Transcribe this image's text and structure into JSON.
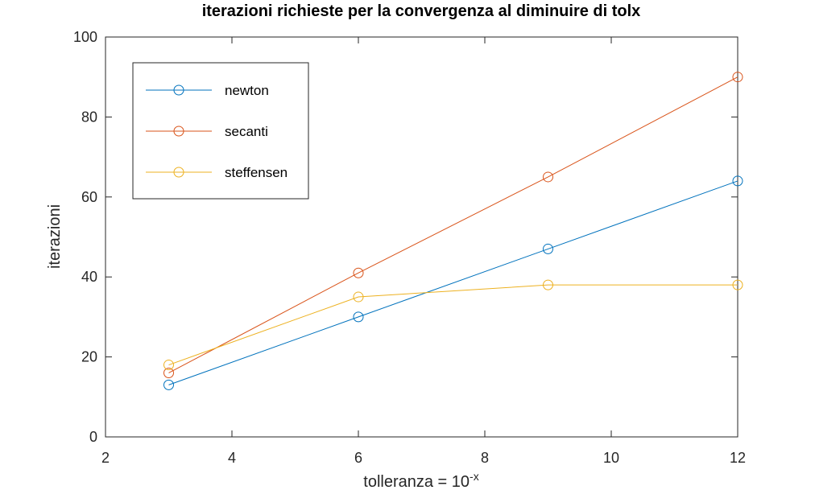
{
  "chart_data": {
    "type": "line",
    "title": "iterazioni richieste per la convergenza al diminuire di tolx",
    "xlabel": {
      "base": "tolleranza = 10",
      "superscript": "-x"
    },
    "ylabel": "iterazioni",
    "xlim": [
      2,
      12
    ],
    "ylim": [
      0,
      100
    ],
    "xticks": [
      2,
      4,
      6,
      8,
      10,
      12
    ],
    "yticks": [
      0,
      20,
      40,
      60,
      80,
      100
    ],
    "x": [
      3,
      6,
      9,
      12
    ],
    "grid": false,
    "legend_position": "top-left",
    "series": [
      {
        "name": "newton",
        "values": [
          13,
          30,
          47,
          64
        ],
        "color": "#0072BD"
      },
      {
        "name": "secanti",
        "values": [
          16,
          41,
          65,
          90
        ],
        "color": "#D95319"
      },
      {
        "name": "steffensen",
        "values": [
          18,
          35,
          38,
          38
        ],
        "color": "#EDB120"
      }
    ]
  }
}
